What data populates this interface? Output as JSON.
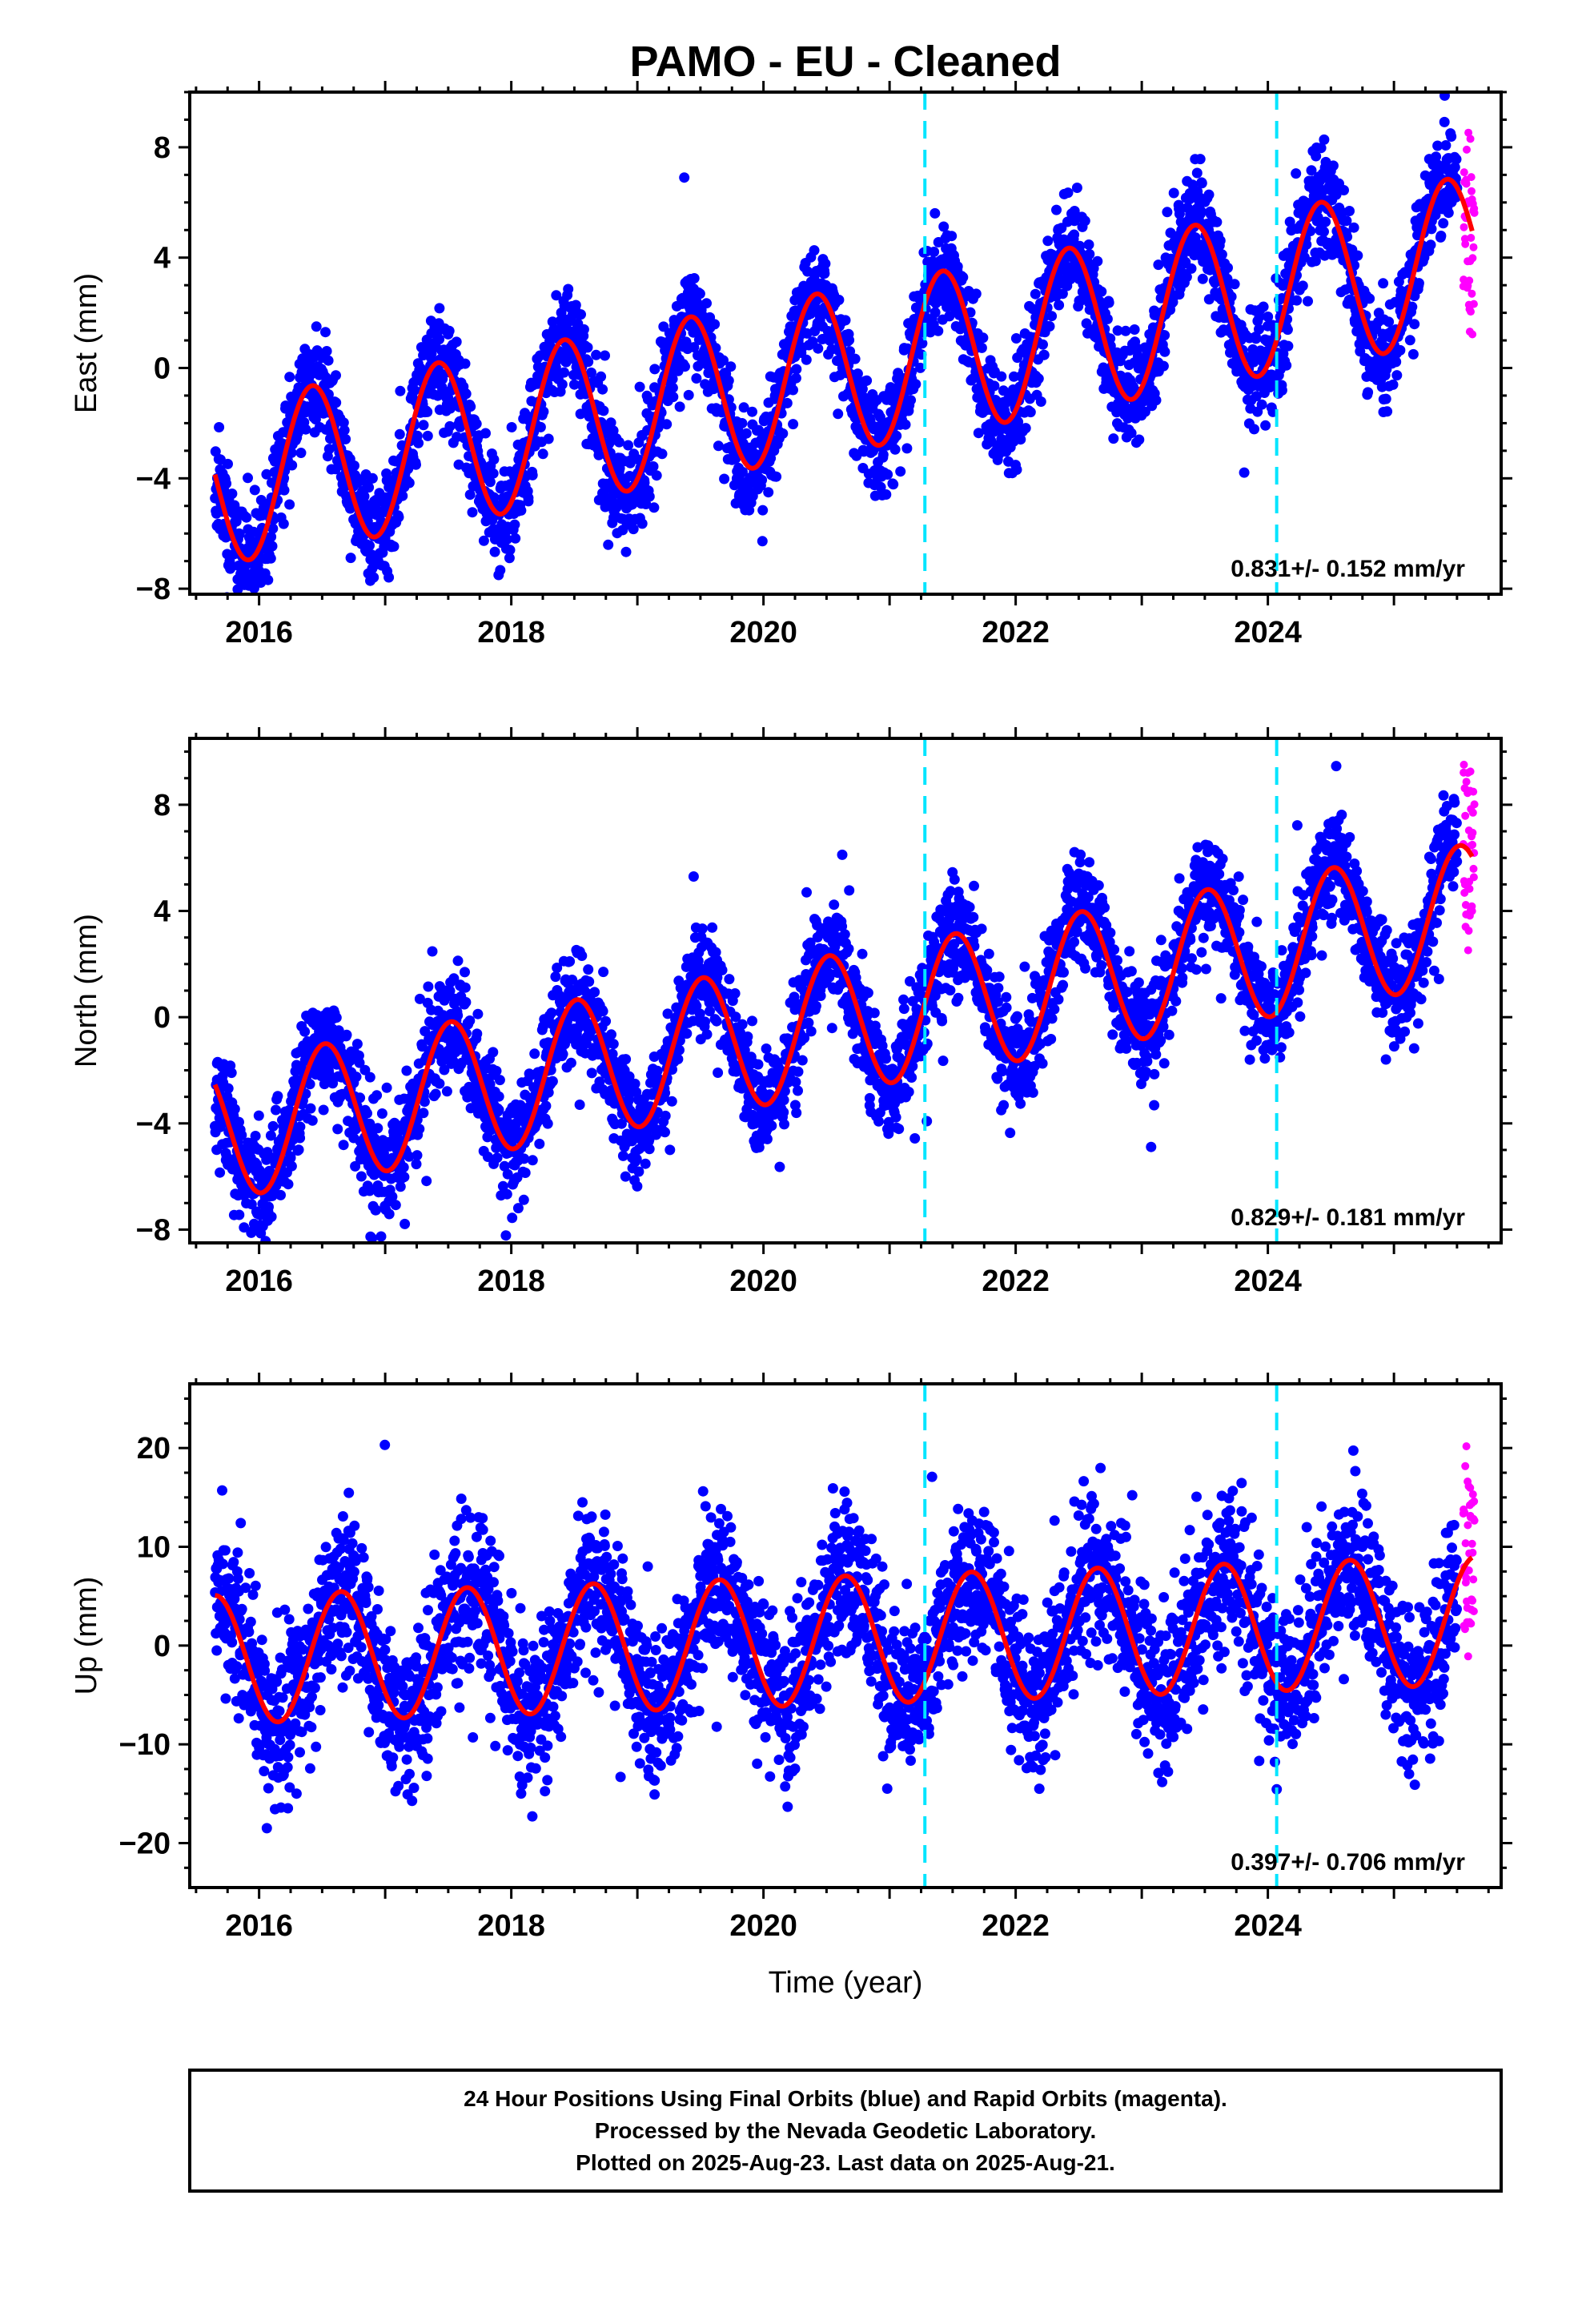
{
  "title": "PAMO  - EU - Cleaned",
  "xlabel": "Time (year)",
  "footer": {
    "line1": "24 Hour Positions Using Final Orbits (blue) and Rapid Orbits (magenta).",
    "line2": "Processed by the Nevada Geodetic Laboratory.",
    "line3": "Plotted on 2025-Aug-23. Last data on 2025-Aug-21."
  },
  "colors": {
    "final_points": "#0000ff",
    "rapid_points": "#ff00ff",
    "model_line": "#ff0000",
    "event_lines": "#00e5ff"
  },
  "chart_data": [
    {
      "type": "scatter",
      "name": "east",
      "ylabel": "East (mm)",
      "rate_label": "0.831+/- 0.152 mm/yr",
      "xlim": [
        2015.45,
        2025.85
      ],
      "ylim": [
        -8.2,
        10
      ],
      "xticks": [
        2016,
        2018,
        2020,
        2022,
        2024
      ],
      "xtick_labels": [
        "2016",
        "2018",
        "2020",
        "2022",
        "2024"
      ],
      "yticks": [
        -8,
        -4,
        0,
        4,
        8
      ],
      "ytick_labels": [
        "−8",
        "−4",
        "0",
        "4",
        "8"
      ],
      "event_lines_x": [
        2021.28,
        2024.07
      ],
      "model": {
        "rate": 0.831,
        "t0": 2020.5,
        "offset": -0.2,
        "amplitude": 2.95,
        "peak_phase": 0.42,
        "start": 2015.65,
        "end": 2025.62
      },
      "scatter_sigma": 0.95,
      "final_range": [
        2015.65,
        2025.5
      ],
      "rapid_range": [
        2025.55,
        2025.64
      ],
      "rapid_y_spread": 6.5,
      "n_final": 3500,
      "n_rapid": 40,
      "seed": 11
    },
    {
      "type": "scatter",
      "name": "north",
      "ylabel": "North (mm)",
      "rate_label": "0.829+/- 0.181 mm/yr",
      "xlim": [
        2015.45,
        2025.85
      ],
      "ylim": [
        -8.5,
        10.5
      ],
      "xticks": [
        2016,
        2018,
        2020,
        2022,
        2024
      ],
      "xtick_labels": [
        "2016",
        "2018",
        "2020",
        "2022",
        "2024"
      ],
      "yticks": [
        -8,
        -4,
        0,
        4,
        8
      ],
      "ytick_labels": [
        "−8",
        "−4",
        "0",
        "4",
        "8"
      ],
      "event_lines_x": [
        2021.28,
        2024.07
      ],
      "model": {
        "rate": 0.829,
        "t0": 2020.5,
        "offset": -0.3,
        "amplitude": 2.6,
        "peak_phase": 0.52,
        "start": 2015.65,
        "end": 2025.62
      },
      "scatter_sigma": 1.0,
      "final_range": [
        2015.65,
        2025.5
      ],
      "rapid_range": [
        2025.55,
        2025.64
      ],
      "rapid_y_spread": 7.0,
      "n_final": 3500,
      "n_rapid": 40,
      "seed": 23
    },
    {
      "type": "scatter",
      "name": "up",
      "ylabel": "Up (mm)",
      "rate_label": "0.397+/- 0.706 mm/yr",
      "xlim": [
        2015.45,
        2025.85
      ],
      "ylim": [
        -24.5,
        26.5
      ],
      "xticks": [
        2016,
        2018,
        2020,
        2022,
        2024
      ],
      "xtick_labels": [
        "2016",
        "2018",
        "2020",
        "2022",
        "2024"
      ],
      "yticks": [
        -20,
        -10,
        0,
        10,
        20
      ],
      "ytick_labels": [
        "−20",
        "−10",
        "0",
        "10",
        "20"
      ],
      "event_lines_x": [
        2021.28,
        2024.07
      ],
      "model": {
        "rate": 0.397,
        "t0": 2020.5,
        "offset": 0.5,
        "amplitude": 6.5,
        "peak_phase": 0.65,
        "start": 2015.65,
        "end": 2025.62
      },
      "scatter_sigma": 4.0,
      "final_range": [
        2015.65,
        2025.5
      ],
      "rapid_range": [
        2025.55,
        2025.64
      ],
      "rapid_y_spread": 18.0,
      "n_final": 3500,
      "n_rapid": 40,
      "seed": 37
    }
  ]
}
